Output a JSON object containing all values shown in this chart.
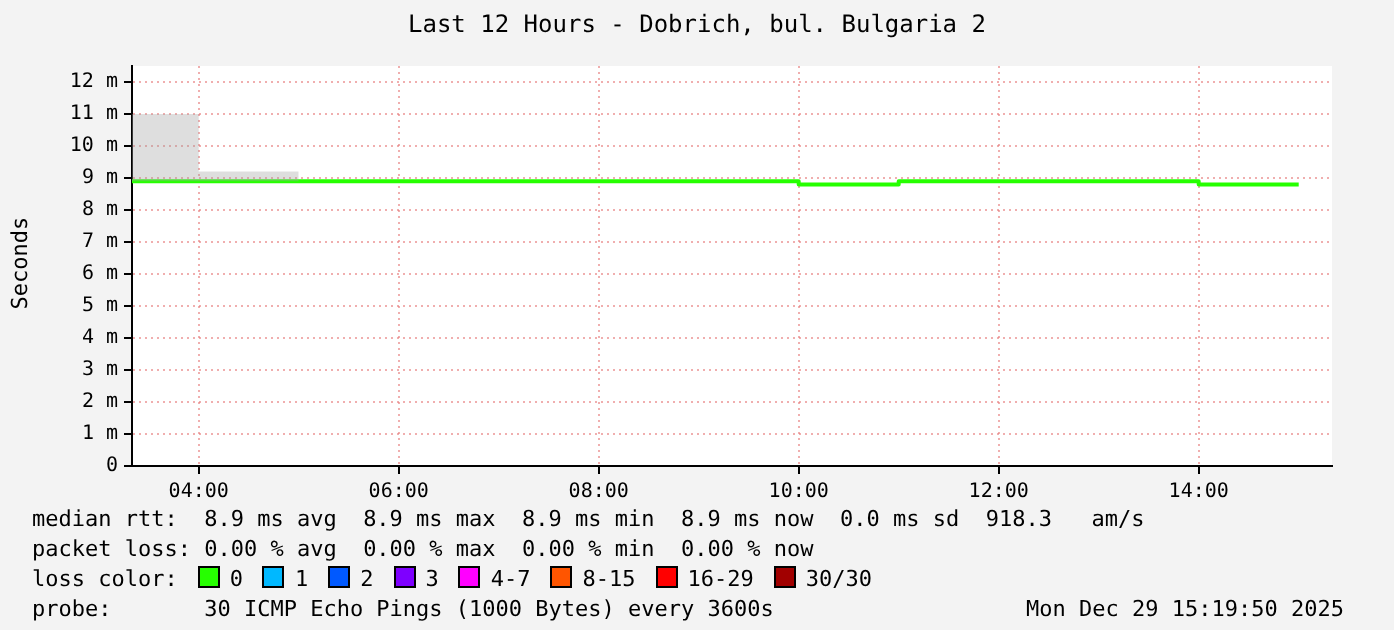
{
  "chart_data": {
    "type": "step",
    "title": "Last 12 Hours - Dobrich, bul. Bulgaria 2",
    "ylabel": "Seconds",
    "x": [
      3.333,
      4,
      5,
      6,
      7,
      8,
      9,
      10,
      11,
      12,
      13,
      14,
      15
    ],
    "series": [
      {
        "name": "0",
        "color": "#26ff00",
        "values": [
          8.9,
          8.9,
          8.9,
          8.9,
          8.9,
          8.9,
          8.9,
          8.8,
          8.9,
          8.9,
          8.9,
          8.8,
          8.8
        ],
        "lower": [
          8.9,
          8.9,
          8.9,
          null,
          null,
          null,
          null,
          null,
          null,
          null,
          null,
          null,
          null
        ],
        "upper": [
          11,
          9.2,
          9.2,
          null,
          null,
          null,
          null,
          null,
          null,
          null,
          null,
          null,
          null
        ]
      },
      {
        "name": "1",
        "color": "#00b8ff",
        "values": [
          null,
          null,
          null,
          null,
          null,
          null,
          null,
          null,
          null,
          null,
          null,
          null,
          null
        ]
      },
      {
        "name": "2",
        "color": "#0059ff",
        "values": [
          null,
          null,
          null,
          null,
          null,
          null,
          null,
          null,
          null,
          null,
          null,
          null,
          null
        ]
      },
      {
        "name": "3",
        "color": "#7e00ff",
        "values": [
          null,
          null,
          null,
          null,
          null,
          null,
          null,
          null,
          null,
          null,
          null,
          null,
          null
        ]
      },
      {
        "name": "4-7",
        "color": "#ff00ff",
        "values": [
          null,
          null,
          null,
          null,
          null,
          null,
          null,
          null,
          null,
          null,
          null,
          null,
          null
        ]
      },
      {
        "name": "8-15",
        "color": "#ff5500",
        "values": [
          null,
          null,
          null,
          null,
          null,
          null,
          null,
          null,
          null,
          null,
          null,
          null,
          null
        ]
      },
      {
        "name": "16-29",
        "color": "#ff0000",
        "values": [
          null,
          null,
          null,
          null,
          null,
          null,
          null,
          null,
          null,
          null,
          null,
          null,
          null
        ]
      },
      {
        "name": "30/30",
        "color": "#a10000",
        "values": [
          null,
          null,
          null,
          null,
          null,
          null,
          null,
          null,
          null,
          null,
          null,
          null,
          null
        ]
      }
    ],
    "legend": "bottom",
    "legend_title": "loss color:",
    "grid": true,
    "xlim": [
      3.333,
      15.333
    ],
    "xticks": [
      {
        "value": 4,
        "label": "04:00"
      },
      {
        "value": 6,
        "label": "06:00"
      },
      {
        "value": 8,
        "label": "08:00"
      },
      {
        "value": 10,
        "label": "10:00"
      },
      {
        "value": 12,
        "label": "12:00"
      },
      {
        "value": 14,
        "label": "14:00"
      }
    ],
    "ylim": [
      0,
      12.5
    ],
    "yticks": [
      {
        "value": 0,
        "label": "0"
      },
      {
        "value": 1,
        "label": "1 m"
      },
      {
        "value": 2,
        "label": "2 m"
      },
      {
        "value": 3,
        "label": "3 m"
      },
      {
        "value": 4,
        "label": "4 m"
      },
      {
        "value": 5,
        "label": "5 m"
      },
      {
        "value": 6,
        "label": "6 m"
      },
      {
        "value": 7,
        "label": "7 m"
      },
      {
        "value": 8,
        "label": "8 m"
      },
      {
        "value": 9,
        "label": "9 m"
      },
      {
        "value": 10,
        "label": "10 m"
      },
      {
        "value": 11,
        "label": "11 m"
      },
      {
        "value": 12,
        "label": "12 m"
      }
    ],
    "annotations": [
      "median rtt:  8.9 ms avg  8.9 ms max  8.9 ms min  8.9 ms now  0.0 ms sd  918.3   am/s",
      "packet loss: 0.00 % avg  0.00 % max  0.00 % min  0.00 % now",
      "probe:       30 ICMP Echo Pings (1000 Bytes) every 3600s",
      "Mon Dec 29 15:19:50 2025"
    ]
  }
}
